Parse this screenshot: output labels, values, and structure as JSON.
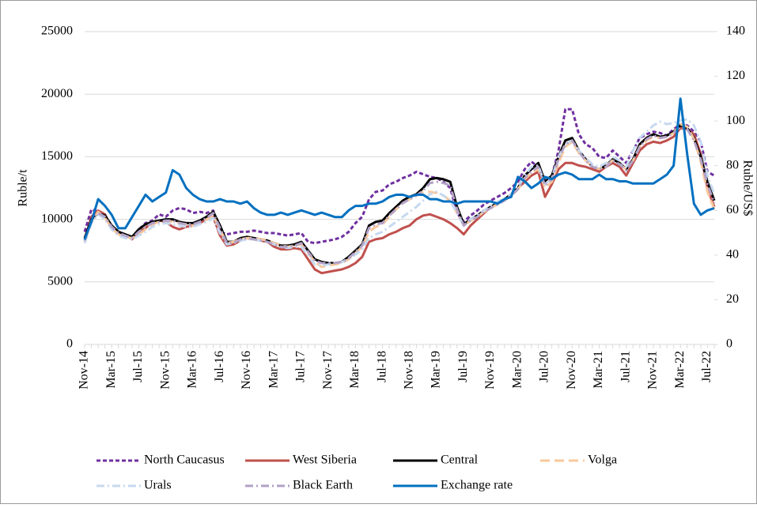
{
  "chart_data": {
    "type": "line",
    "y_label": "Ruble/t",
    "y2_label": "Ruble/US$",
    "categories": [
      "Nov-14",
      null,
      null,
      null,
      "Mar-15",
      null,
      null,
      null,
      "Jul-15",
      null,
      null,
      null,
      "Nov-15",
      null,
      null,
      null,
      "Mar-16",
      null,
      null,
      null,
      "Jul-16",
      null,
      null,
      null,
      "Nov-16",
      null,
      null,
      null,
      "Mar-17",
      null,
      null,
      null,
      "Jul-17",
      null,
      null,
      null,
      "Nov-17",
      null,
      null,
      null,
      "Mar-18",
      null,
      null,
      null,
      "Jul-18",
      null,
      null,
      null,
      "Nov-18",
      null,
      null,
      null,
      "Mar-19",
      null,
      null,
      null,
      "Jul-19",
      null,
      null,
      null,
      "Nov-19",
      null,
      null,
      null,
      "Mar-20",
      null,
      null,
      null,
      "Jul-20",
      null,
      null,
      null,
      "Nov-20",
      null,
      null,
      null,
      "Mar-21",
      null,
      null,
      null,
      "Jul-21",
      null,
      null,
      null,
      "Nov-21",
      null,
      null,
      null,
      "Mar-22",
      null,
      null,
      null,
      "Jul-22",
      null
    ],
    "ylim": [
      0,
      25000
    ],
    "yticks": [
      0,
      5000,
      10000,
      15000,
      20000,
      25000
    ],
    "y2lim": [
      0,
      140
    ],
    "y2ticks": [
      0,
      20,
      40,
      60,
      80,
      100,
      120,
      140
    ],
    "grid": true,
    "series": [
      {
        "name": "North Caucasus",
        "color": "#7030a0",
        "style": "dashed",
        "values": [
          9000,
          10800,
          10600,
          10400,
          9300,
          8800,
          8700,
          8500,
          9200,
          9700,
          9900,
          10400,
          10200,
          10700,
          10900,
          10800,
          10500,
          10600,
          10500,
          10700,
          9000,
          8800,
          8900,
          9000,
          9000,
          9100,
          9000,
          8900,
          8900,
          8800,
          8700,
          8800,
          8900,
          8200,
          8100,
          8200,
          8300,
          8400,
          8600,
          9000,
          9700,
          10200,
          11600,
          12200,
          12300,
          12800,
          13000,
          13300,
          13500,
          13800,
          13600,
          13400,
          13300,
          13000,
          12500,
          10500,
          9800,
          10300,
          10700,
          11200,
          11500,
          11800,
          12100,
          12500,
          13000,
          14000,
          14600,
          14200,
          13200,
          13400,
          15500,
          18800,
          18800,
          16800,
          16000,
          15700,
          15000,
          14900,
          15500,
          15000,
          14500,
          15500,
          16500,
          16800,
          17000,
          16900,
          16700,
          17200,
          17600,
          17500,
          17000,
          16200,
          13800,
          13500
        ]
      },
      {
        "name": "West Siberia",
        "color": "#c0504d",
        "style": "solid",
        "values": [
          8300,
          10200,
          10700,
          10400,
          9300,
          9000,
          8800,
          8400,
          9000,
          9300,
          9800,
          9900,
          9800,
          9400,
          9200,
          9400,
          9500,
          9700,
          10000,
          10200,
          8700,
          7900,
          8000,
          8300,
          8500,
          8400,
          8300,
          8200,
          7800,
          7600,
          7600,
          7700,
          7600,
          6800,
          6000,
          5700,
          5800,
          5900,
          6000,
          6200,
          6500,
          7000,
          8200,
          8400,
          8500,
          8800,
          9000,
          9300,
          9500,
          10000,
          10300,
          10400,
          10200,
          10000,
          9700,
          9300,
          8800,
          9500,
          10000,
          10500,
          11000,
          11300,
          11600,
          12000,
          12500,
          13000,
          13500,
          13800,
          11800,
          12800,
          14000,
          14500,
          14500,
          14300,
          14200,
          14000,
          13800,
          14200,
          14500,
          14200,
          13500,
          14500,
          15500,
          16000,
          16200,
          16100,
          16300,
          16600,
          17300,
          17200,
          16800,
          15200,
          12500,
          11000
        ]
      },
      {
        "name": "Central",
        "color": "#000000",
        "style": "solid",
        "values": [
          8500,
          10000,
          10500,
          10300,
          9500,
          9000,
          8800,
          8600,
          9200,
          9600,
          9800,
          9900,
          10000,
          10000,
          9800,
          9700,
          9700,
          9900,
          10200,
          10600,
          9500,
          8200,
          8200,
          8500,
          8600,
          8500,
          8400,
          8300,
          8100,
          7900,
          7900,
          8000,
          8200,
          7500,
          6800,
          6600,
          6500,
          6500,
          6600,
          7000,
          7500,
          8000,
          9500,
          9800,
          9900,
          10500,
          11000,
          11500,
          11800,
          12000,
          12500,
          13200,
          13300,
          13200,
          13000,
          11000,
          9600,
          10000,
          10300,
          10700,
          11000,
          11300,
          11600,
          12000,
          12500,
          13500,
          14000,
          14500,
          13000,
          13500,
          15000,
          16300,
          16500,
          15500,
          14800,
          14200,
          14000,
          14300,
          14800,
          14500,
          14000,
          14800,
          16000,
          16500,
          16800,
          16600,
          16700,
          17000,
          17500,
          17300,
          16500,
          15000,
          13000,
          11500
        ]
      },
      {
        "name": "Volga",
        "color": "#f9c89b",
        "style": "long-dash",
        "values": [
          8200,
          9800,
          10600,
          10100,
          9300,
          8800,
          8600,
          8500,
          8800,
          9200,
          9600,
          9800,
          9900,
          9800,
          9700,
          9600,
          9500,
          9700,
          10000,
          10300,
          9200,
          8100,
          8200,
          8400,
          8500,
          8500,
          8400,
          8300,
          8100,
          7900,
          7800,
          7900,
          8000,
          7300,
          6600,
          6200,
          6300,
          6400,
          6500,
          6800,
          7300,
          7800,
          9000,
          9400,
          9600,
          10200,
          10800,
          11300,
          11600,
          11900,
          12200,
          12200,
          12100,
          11900,
          11500,
          10500,
          9500,
          9900,
          10200,
          10600,
          10900,
          11200,
          11500,
          11900,
          12400,
          13200,
          13700,
          14000,
          12500,
          13000,
          14500,
          15800,
          16200,
          15300,
          14700,
          14200,
          14000,
          14300,
          14700,
          14400,
          14000,
          14700,
          15800,
          16300,
          16600,
          16500,
          16600,
          16900,
          17600,
          17400,
          16400,
          14600,
          12200,
          10800
        ]
      },
      {
        "name": "Urals",
        "color": "#c6d9f0",
        "style": "dash-dot",
        "values": [
          8100,
          9700,
          10400,
          10000,
          9200,
          8700,
          8500,
          8400,
          8700,
          9000,
          9400,
          9600,
          9700,
          9600,
          9500,
          9400,
          9400,
          9600,
          9800,
          10100,
          8900,
          8000,
          8100,
          8300,
          8400,
          8400,
          8300,
          8200,
          8000,
          7800,
          7700,
          7800,
          7800,
          7100,
          6400,
          6300,
          6400,
          6500,
          6600,
          6800,
          7200,
          7600,
          8500,
          8800,
          9000,
          9400,
          9800,
          10200,
          10600,
          11000,
          11500,
          12000,
          12200,
          11900,
          11500,
          10500,
          9500,
          10000,
          10300,
          10700,
          11100,
          11400,
          11700,
          12000,
          12500,
          13500,
          14200,
          14300,
          12800,
          13300,
          15000,
          16000,
          16300,
          15500,
          14900,
          14400,
          14200,
          14500,
          15000,
          14700,
          14200,
          15500,
          16500,
          17000,
          17500,
          17800,
          17600,
          17700,
          17900,
          18000,
          17500,
          16200,
          13500,
          12000
        ]
      },
      {
        "name": "Black Earth",
        "color": "#b3a2c7",
        "style": "dash-dot",
        "values": [
          8300,
          9900,
          10500,
          10200,
          9400,
          8900,
          8700,
          8500,
          9000,
          9400,
          9700,
          9800,
          9900,
          9900,
          9700,
          9600,
          9600,
          9800,
          10100,
          10500,
          9300,
          8100,
          8100,
          8400,
          8500,
          8400,
          8300,
          8200,
          8000,
          7800,
          7800,
          7900,
          8100,
          7400,
          6700,
          6500,
          6500,
          6500,
          6600,
          6900,
          7400,
          7900,
          9300,
          9600,
          9700,
          10300,
          10800,
          11300,
          11600,
          11900,
          12300,
          12900,
          13000,
          12900,
          12700,
          10800,
          9500,
          9900,
          10200,
          10600,
          10900,
          11200,
          11500,
          11900,
          12400,
          13300,
          13800,
          14200,
          12700,
          13200,
          14800,
          16000,
          16300,
          15400,
          14700,
          14200,
          14000,
          14200,
          14700,
          14400,
          13900,
          14700,
          15800,
          16400,
          16700,
          16500,
          16600,
          16900,
          17400,
          17200,
          16300,
          14800,
          12800,
          11300
        ]
      },
      {
        "name": "Exchange rate",
        "color": "#0070c0",
        "style": "solid",
        "axis": "y2",
        "values": [
          47,
          55,
          65,
          62,
          58,
          52,
          52,
          57,
          62,
          67,
          64,
          66,
          68,
          78,
          76,
          70,
          67,
          65,
          64,
          64,
          65,
          64,
          64,
          63,
          64,
          61,
          59,
          58,
          58,
          59,
          58,
          59,
          60,
          59,
          58,
          59,
          58,
          57,
          57,
          60,
          62,
          62,
          63,
          63,
          64,
          66,
          67,
          67,
          66,
          67,
          67,
          65,
          65,
          64,
          64,
          63,
          64,
          64,
          64,
          64,
          64,
          63,
          65,
          66,
          75,
          73,
          70,
          72,
          75,
          74,
          76,
          77,
          76,
          74,
          74,
          74,
          76,
          74,
          74,
          73,
          73,
          72,
          72,
          72,
          72,
          74,
          76,
          80,
          110,
          85,
          63,
          58,
          60,
          61
        ]
      }
    ]
  }
}
